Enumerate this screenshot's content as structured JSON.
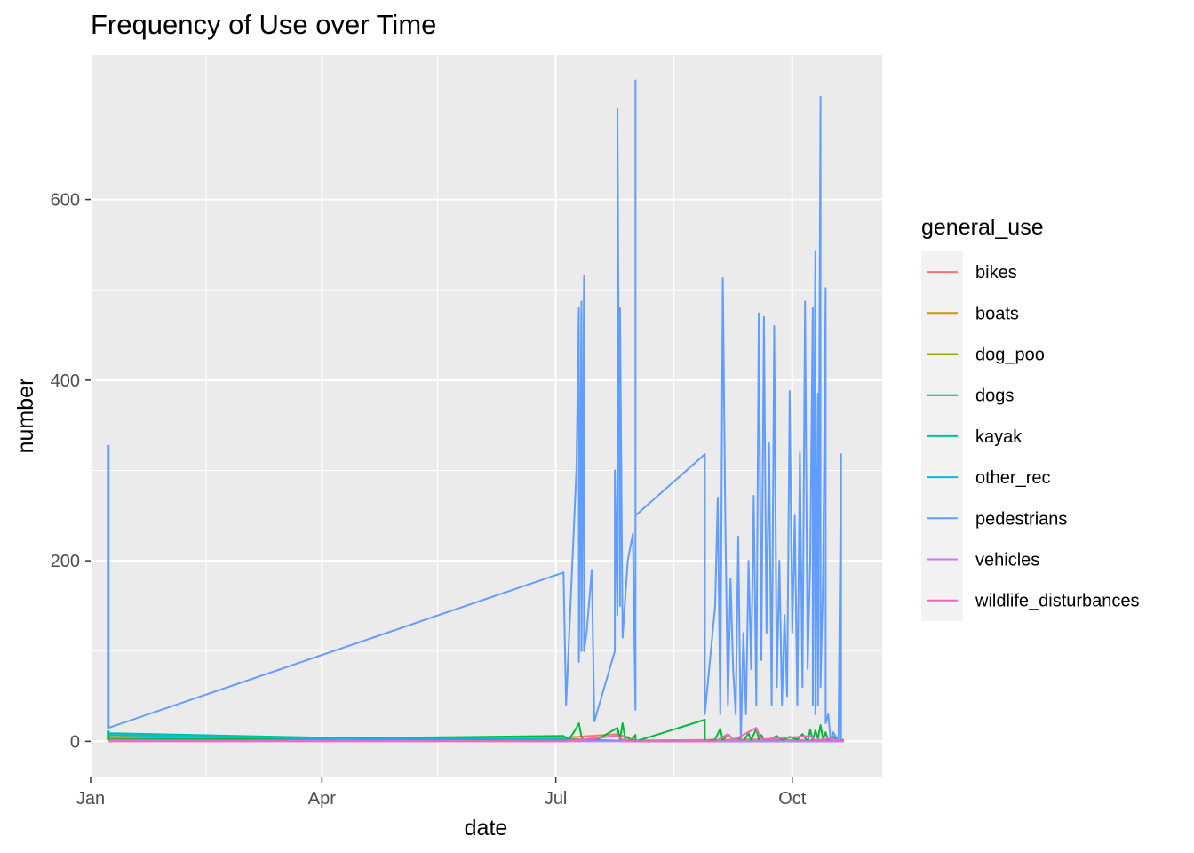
{
  "chart_data": {
    "type": "line",
    "title": "Frequency of Use over Time",
    "xlabel": "date",
    "ylabel": "number",
    "x_ticks": [
      "Jan",
      "Apr",
      "Jul",
      "Oct"
    ],
    "y_ticks": [
      0,
      200,
      400,
      600
    ],
    "xlim": [
      "2023-01-01",
      "2023-11-05"
    ],
    "ylim": [
      -40,
      760
    ],
    "legend": {
      "title": "general_use",
      "position": "right"
    },
    "grid": true,
    "series": [
      {
        "name": "bikes",
        "color": "#F8766D",
        "points": [
          [
            "2023-01-08",
            4
          ],
          [
            "2023-04-01",
            3
          ],
          [
            "2023-07-04",
            4
          ],
          [
            "2023-07-25",
            8
          ],
          [
            "2023-08-01",
            1
          ],
          [
            "2023-09-17",
            2
          ],
          [
            "2023-10-15",
            1
          ],
          [
            "2023-10-21",
            0
          ]
        ]
      },
      {
        "name": "boats",
        "color": "#D39200",
        "points": [
          [
            "2023-01-08",
            5
          ],
          [
            "2023-04-01",
            3
          ],
          [
            "2023-07-04",
            3
          ],
          [
            "2023-08-01",
            0
          ],
          [
            "2023-10-21",
            0
          ]
        ]
      },
      {
        "name": "dog_poo",
        "color": "#93AA00",
        "points": [
          [
            "2023-01-08",
            2
          ],
          [
            "2023-07-04",
            1
          ],
          [
            "2023-08-01",
            0
          ],
          [
            "2023-10-21",
            0
          ]
        ]
      },
      {
        "name": "dogs",
        "color": "#00BA38",
        "points": [
          [
            "2023-01-08",
            12
          ],
          [
            "2023-01-08",
            2
          ],
          [
            "2023-04-01",
            3
          ],
          [
            "2023-07-04",
            6
          ],
          [
            "2023-07-06",
            2
          ],
          [
            "2023-07-08",
            10
          ],
          [
            "2023-07-10",
            20
          ],
          [
            "2023-07-11",
            5
          ],
          [
            "2023-07-12",
            1
          ],
          [
            "2023-07-14",
            3
          ],
          [
            "2023-07-15",
            1
          ],
          [
            "2023-07-16",
            0
          ],
          [
            "2023-07-25",
            15
          ],
          [
            "2023-07-26",
            2
          ],
          [
            "2023-07-27",
            20
          ],
          [
            "2023-07-28",
            3
          ],
          [
            "2023-07-29",
            5
          ],
          [
            "2023-07-30",
            0
          ],
          [
            "2023-08-01",
            7
          ],
          [
            "2023-08-01",
            0
          ],
          [
            "2023-08-28",
            24
          ],
          [
            "2023-08-28",
            0
          ],
          [
            "2023-09-01",
            2
          ],
          [
            "2023-09-03",
            14
          ],
          [
            "2023-09-04",
            1
          ],
          [
            "2023-09-06",
            8
          ],
          [
            "2023-09-08",
            2
          ],
          [
            "2023-09-10",
            4
          ],
          [
            "2023-09-12",
            0
          ],
          [
            "2023-09-14",
            9
          ],
          [
            "2023-09-15",
            1
          ],
          [
            "2023-09-17",
            14
          ],
          [
            "2023-09-18",
            2
          ],
          [
            "2023-09-19",
            7
          ],
          [
            "2023-09-20",
            1
          ],
          [
            "2023-09-23",
            3
          ],
          [
            "2023-09-25",
            6
          ],
          [
            "2023-09-27",
            1
          ],
          [
            "2023-09-30",
            5
          ],
          [
            "2023-10-03",
            2
          ],
          [
            "2023-10-05",
            8
          ],
          [
            "2023-10-07",
            0
          ],
          [
            "2023-10-08",
            13
          ],
          [
            "2023-10-09",
            1
          ],
          [
            "2023-10-10",
            12
          ],
          [
            "2023-10-11",
            3
          ],
          [
            "2023-10-12",
            18
          ],
          [
            "2023-10-13",
            2
          ],
          [
            "2023-10-14",
            10
          ],
          [
            "2023-10-15",
            1
          ],
          [
            "2023-10-17",
            5
          ],
          [
            "2023-10-19",
            0
          ],
          [
            "2023-10-21",
            2
          ]
        ]
      },
      {
        "name": "kayak",
        "color": "#00C19F",
        "points": [
          [
            "2023-01-08",
            9
          ],
          [
            "2023-04-01",
            4
          ],
          [
            "2023-07-04",
            2
          ],
          [
            "2023-08-01",
            0
          ],
          [
            "2023-10-21",
            0
          ]
        ]
      },
      {
        "name": "other_rec",
        "color": "#00B9E3",
        "points": [
          [
            "2023-01-08",
            7
          ],
          [
            "2023-04-01",
            3
          ],
          [
            "2023-07-04",
            2
          ],
          [
            "2023-08-01",
            0
          ],
          [
            "2023-10-21",
            0
          ]
        ]
      },
      {
        "name": "pedestrians",
        "color": "#619CFF",
        "points": [
          [
            "2023-01-08",
            328
          ],
          [
            "2023-01-08",
            15
          ],
          [
            "2023-07-04",
            187
          ],
          [
            "2023-07-05",
            40
          ],
          [
            "2023-07-09",
            300
          ],
          [
            "2023-07-10",
            480
          ],
          [
            "2023-07-10",
            88
          ],
          [
            "2023-07-11",
            487
          ],
          [
            "2023-07-11",
            100
          ],
          [
            "2023-07-12",
            515
          ],
          [
            "2023-07-12",
            100
          ],
          [
            "2023-07-13",
            120
          ],
          [
            "2023-07-15",
            190
          ],
          [
            "2023-07-16",
            22
          ],
          [
            "2023-07-24",
            100
          ],
          [
            "2023-07-24",
            300
          ],
          [
            "2023-07-25",
            140
          ],
          [
            "2023-07-25",
            700
          ],
          [
            "2023-07-26",
            150
          ],
          [
            "2023-07-26",
            480
          ],
          [
            "2023-07-27",
            115
          ],
          [
            "2023-07-29",
            200
          ],
          [
            "2023-07-31",
            230
          ],
          [
            "2023-08-01",
            35
          ],
          [
            "2023-08-01",
            732
          ],
          [
            "2023-08-01",
            250
          ],
          [
            "2023-08-28",
            318
          ],
          [
            "2023-08-28",
            30
          ],
          [
            "2023-09-01",
            150
          ],
          [
            "2023-09-02",
            270
          ],
          [
            "2023-09-03",
            30
          ],
          [
            "2023-09-04",
            513
          ],
          [
            "2023-09-05",
            240
          ],
          [
            "2023-09-06",
            40
          ],
          [
            "2023-09-07",
            180
          ],
          [
            "2023-09-08",
            80
          ],
          [
            "2023-09-09",
            30
          ],
          [
            "2023-09-10",
            227
          ],
          [
            "2023-09-11",
            0
          ],
          [
            "2023-09-12",
            120
          ],
          [
            "2023-09-13",
            30
          ],
          [
            "2023-09-14",
            200
          ],
          [
            "2023-09-15",
            80
          ],
          [
            "2023-09-16",
            272
          ],
          [
            "2023-09-17",
            40
          ],
          [
            "2023-09-18",
            474
          ],
          [
            "2023-09-19",
            90
          ],
          [
            "2023-09-20",
            470
          ],
          [
            "2023-09-21",
            120
          ],
          [
            "2023-09-22",
            330
          ],
          [
            "2023-09-23",
            40
          ],
          [
            "2023-09-24",
            460
          ],
          [
            "2023-09-25",
            60
          ],
          [
            "2023-09-26",
            200
          ],
          [
            "2023-09-27",
            40
          ],
          [
            "2023-09-28",
            140
          ],
          [
            "2023-09-29",
            50
          ],
          [
            "2023-09-30",
            388
          ],
          [
            "2023-10-01",
            120
          ],
          [
            "2023-10-02",
            250
          ],
          [
            "2023-10-03",
            40
          ],
          [
            "2023-10-04",
            320
          ],
          [
            "2023-10-05",
            60
          ],
          [
            "2023-10-06",
            487
          ],
          [
            "2023-10-07",
            80
          ],
          [
            "2023-10-08",
            200
          ],
          [
            "2023-10-09",
            480
          ],
          [
            "2023-10-09",
            40
          ],
          [
            "2023-10-10",
            543
          ],
          [
            "2023-10-10",
            30
          ],
          [
            "2023-10-11",
            385
          ],
          [
            "2023-10-11",
            40
          ],
          [
            "2023-10-12",
            714
          ],
          [
            "2023-10-12",
            60
          ],
          [
            "2023-10-13",
            180
          ],
          [
            "2023-10-14",
            502
          ],
          [
            "2023-10-14",
            20
          ],
          [
            "2023-10-15",
            30
          ],
          [
            "2023-10-16",
            0
          ],
          [
            "2023-10-17",
            10
          ],
          [
            "2023-10-18",
            5
          ],
          [
            "2023-10-19",
            0
          ],
          [
            "2023-10-20",
            318
          ],
          [
            "2023-10-20",
            0
          ]
        ]
      },
      {
        "name": "vehicles",
        "color": "#DB72FB",
        "points": [
          [
            "2023-01-08",
            1
          ],
          [
            "2023-07-04",
            0
          ],
          [
            "2023-08-01",
            0
          ],
          [
            "2023-10-21",
            0
          ]
        ]
      },
      {
        "name": "wildlife_disturbances",
        "color": "#FF61C3",
        "points": [
          [
            "2023-01-08",
            0
          ],
          [
            "2023-07-04",
            0
          ],
          [
            "2023-07-25",
            6
          ],
          [
            "2023-07-27",
            2
          ],
          [
            "2023-08-01",
            0
          ],
          [
            "2023-09-01",
            0
          ],
          [
            "2023-09-06",
            8
          ],
          [
            "2023-09-08",
            1
          ],
          [
            "2023-09-17",
            15
          ],
          [
            "2023-09-19",
            2
          ],
          [
            "2023-10-08",
            6
          ],
          [
            "2023-10-10",
            1
          ],
          [
            "2023-10-15",
            3
          ],
          [
            "2023-10-21",
            0
          ]
        ]
      }
    ]
  }
}
